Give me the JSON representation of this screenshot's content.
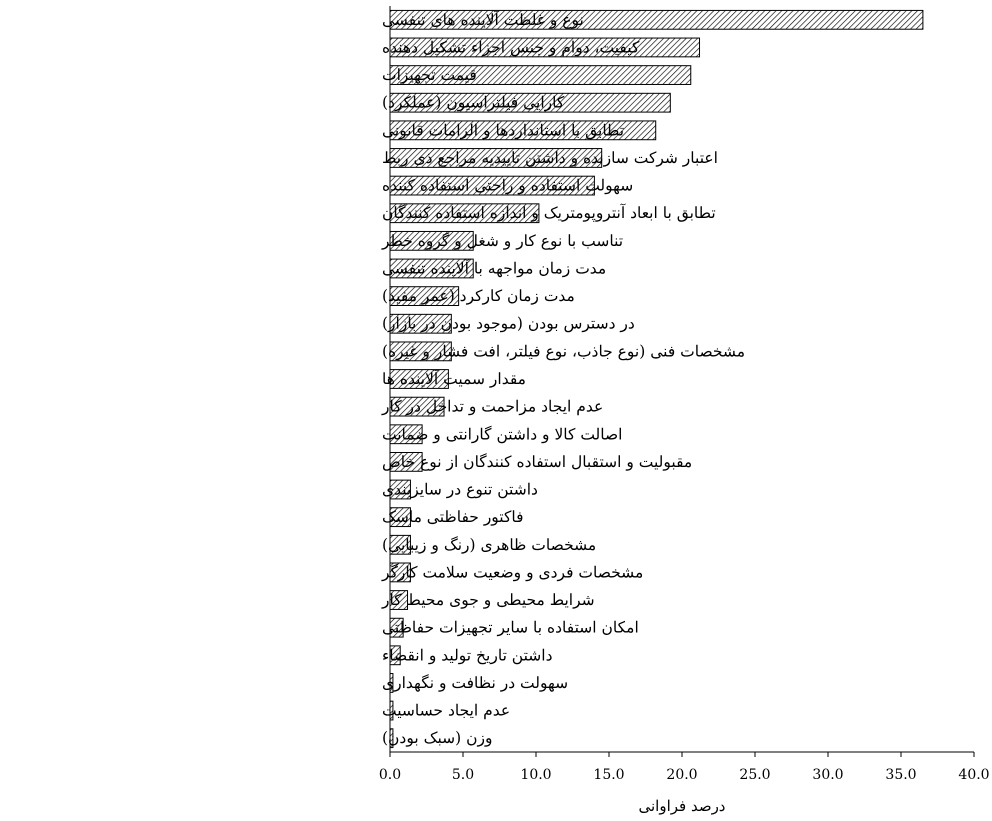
{
  "chart_data": {
    "type": "bar",
    "orientation": "horizontal",
    "categories": [
      "نوع و غلظت آلاینده های تنفسی",
      "کیفیت، دوام و جنس اجزاء تشکیل دهنده",
      "قیمت تجهیزات",
      "کارایی فیلتراسیون (عملکرد)",
      "تطابق با استانداردها و الزامات قانونی",
      "اعتبار شرکت سازنده و داشتن تاییدیه مراجع ذی ربط",
      "سهولت استفاده و راحتی استفاده کننده",
      "تطابق با ابعاد آنتروپومتریک و اندازه استفاده کنندگان",
      "تناسب با نوع کار و شغل و گروه خطر",
      "مدت زمان مواجهه با آلاینده تنفسی",
      "مدت زمان کارکرد (عمر مفید)",
      "در دسترس بودن (موجود بودن در بازار)",
      "مشخصات فنی (نوع جاذب، نوع فیلتر، افت فشار و غیره)",
      "مقدار سمیت آلاینده ها",
      "عدم ایجاد مزاحمت و تداخل در کار",
      "اصالت کالا و داشتن گارانتی و ضمانت",
      "مقبولیت و استقبال استفاده کنندگان از نوع خاص",
      "داشتن تنوع در سایزبندی",
      "فاکتور حفاظتی ماسک",
      "مشخصات ظاهری (رنگ و زیبایی)",
      "مشخصات فردی و وضعیت سلامت کارگر",
      "شرایط محیطی و جوی محیط کار",
      "امکان استفاده با سایر تجهیزات حفاظتی",
      "داشتن تاریخ تولید و انقضاء",
      "سهولت در نظافت و نگهداری",
      "عدم ایجاد حساسیت",
      "وزن (سبک بودن)"
    ],
    "values": [
      36.5,
      21.2,
      20.6,
      19.2,
      18.2,
      14.5,
      14.0,
      10.2,
      5.7,
      5.7,
      4.7,
      4.2,
      4.2,
      4.0,
      3.7,
      2.2,
      2.2,
      1.4,
      1.4,
      1.4,
      1.4,
      1.2,
      0.9,
      0.7,
      0.2,
      0.2,
      0.2
    ],
    "xlabel": "درصد فراوانی",
    "xlim": [
      0,
      40
    ],
    "xticks": [
      "0.0",
      "5.0",
      "10.0",
      "15.0",
      "20.0",
      "25.0",
      "30.0",
      "35.0",
      "40.0"
    ],
    "grid": false,
    "bar_fill": "diagonal-hatch",
    "bar_color": "#000000"
  }
}
